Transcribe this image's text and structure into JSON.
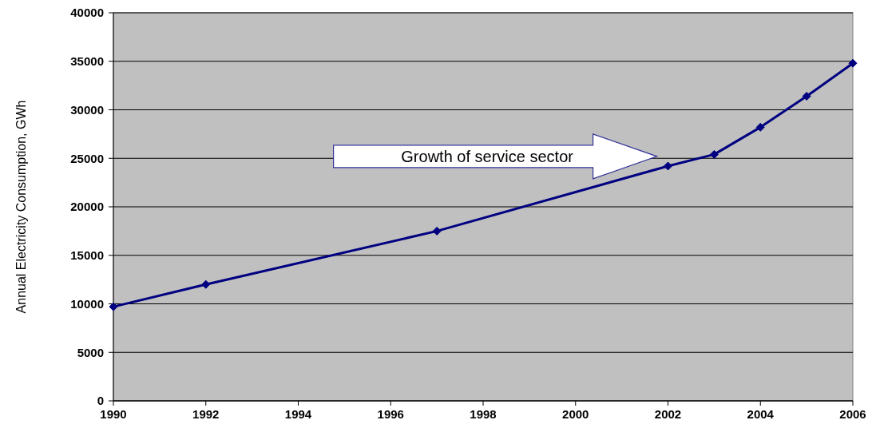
{
  "chart_data": {
    "type": "line",
    "ylabel": "Annual Electricity Consumption, GWh",
    "x": [
      1990,
      1992,
      1997,
      2002,
      2003,
      2004,
      2005,
      2006
    ],
    "series": [
      {
        "color": "#000080",
        "values": [
          9700,
          12000,
          17500,
          24200,
          25400,
          28200,
          31400,
          34800
        ]
      }
    ],
    "xlim": [
      1990,
      2006
    ],
    "xticks": [
      1990,
      1992,
      1994,
      1996,
      1998,
      2000,
      2002,
      2004,
      2006
    ],
    "ylim": [
      0,
      40000
    ],
    "yticks": [
      0,
      5000,
      10000,
      15000,
      20000,
      25000,
      30000,
      35000,
      40000
    ],
    "grid": "y",
    "marker": "diamond",
    "line_style": "solid",
    "annotations": [
      "Growth of service sector"
    ]
  }
}
